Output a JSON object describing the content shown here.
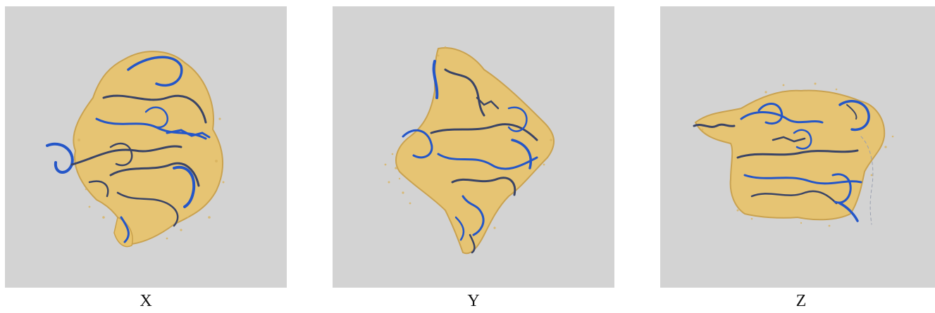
{
  "panels": [
    {
      "id": "x",
      "label": "X"
    },
    {
      "id": "y",
      "label": "Y"
    },
    {
      "id": "z",
      "label": "Z"
    }
  ],
  "colors": {
    "background": "#d3d3d3",
    "density": "#e8c46e",
    "density_edge": "#c9a04a",
    "ribbon": "#2456c8",
    "ribbon_dark": "#3a4466"
  }
}
